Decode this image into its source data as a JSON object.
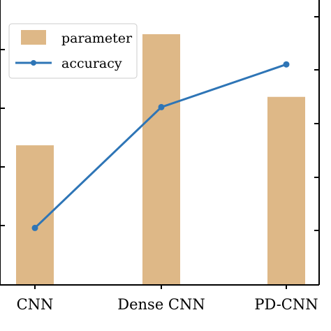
{
  "chart_data": {
    "type": "bar",
    "categories": [
      "CNN",
      "Dense CNN",
      "PD-CNN"
    ],
    "series": [
      {
        "name": "parameter",
        "type": "bar",
        "values": [
          2.45,
          4.4,
          3.3
        ],
        "color": "#deb887"
      },
      {
        "name": "accuracy",
        "type": "line",
        "values": [
          1.0,
          3.12,
          3.87
        ],
        "color": "#2e75b6"
      }
    ],
    "ylim": [
      0,
      5
    ],
    "title": "",
    "xlabel": "",
    "ylabel": "",
    "legend": {
      "position": "top-left",
      "entries": [
        "parameter",
        "accuracy"
      ]
    }
  }
}
